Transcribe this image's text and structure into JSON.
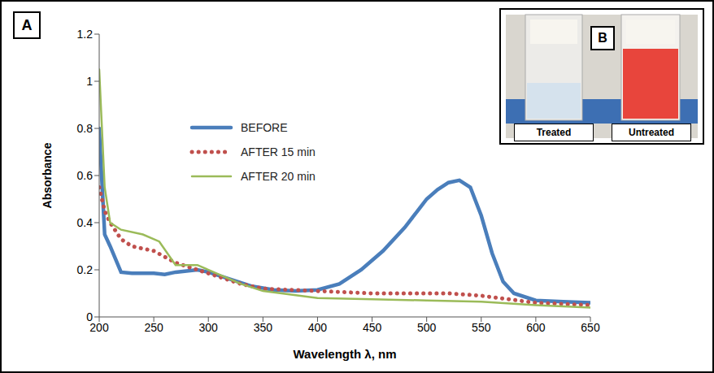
{
  "chart_data": {
    "type": "line",
    "panel_label": "A",
    "x_label": "Wavelength λ, nm",
    "y_label": "Absorbance",
    "xlim": [
      200,
      650
    ],
    "xticks": [
      200,
      250,
      300,
      350,
      400,
      450,
      500,
      550,
      600,
      650
    ],
    "ylim": [
      0,
      1.2
    ],
    "yticks": [
      0,
      0.2,
      0.4,
      0.6,
      0.8,
      1,
      1.2
    ],
    "grid": false,
    "legend": "center",
    "series": [
      {
        "name": "BEFORE",
        "color": "#4a7ebb",
        "line_style": "solid",
        "x": [
          200,
          205,
          210,
          220,
          230,
          250,
          260,
          270,
          290,
          300,
          320,
          340,
          360,
          380,
          400,
          420,
          440,
          460,
          480,
          500,
          510,
          520,
          530,
          540,
          550,
          560,
          570,
          580,
          600,
          625,
          650
        ],
        "values": [
          0.8,
          0.35,
          0.3,
          0.19,
          0.185,
          0.185,
          0.18,
          0.19,
          0.2,
          0.19,
          0.16,
          0.13,
          0.115,
          0.11,
          0.115,
          0.14,
          0.2,
          0.28,
          0.38,
          0.5,
          0.54,
          0.57,
          0.58,
          0.55,
          0.43,
          0.27,
          0.15,
          0.1,
          0.07,
          0.065,
          0.06
        ]
      },
      {
        "name": "AFTER 15 min",
        "color": "#c0504d",
        "line_style": "dotted",
        "x": [
          200,
          205,
          210,
          220,
          230,
          250,
          270,
          290,
          310,
          330,
          350,
          400,
          450,
          500,
          520,
          550,
          600,
          650
        ],
        "values": [
          0.55,
          0.45,
          0.4,
          0.33,
          0.3,
          0.28,
          0.23,
          0.2,
          0.17,
          0.14,
          0.12,
          0.11,
          0.1,
          0.1,
          0.1,
          0.09,
          0.06,
          0.05
        ]
      },
      {
        "name": "AFTER 20 min",
        "color": "#9bbb59",
        "line_style": "solid",
        "x": [
          200,
          205,
          210,
          220,
          240,
          255,
          270,
          290,
          310,
          330,
          350,
          400,
          450,
          500,
          550,
          600,
          650
        ],
        "values": [
          1.05,
          0.55,
          0.4,
          0.37,
          0.35,
          0.32,
          0.22,
          0.22,
          0.18,
          0.14,
          0.11,
          0.08,
          0.075,
          0.07,
          0.065,
          0.05,
          0.04
        ]
      }
    ]
  },
  "inset": {
    "panel_label": "B",
    "captions": [
      "Treated",
      "Untreated"
    ]
  }
}
